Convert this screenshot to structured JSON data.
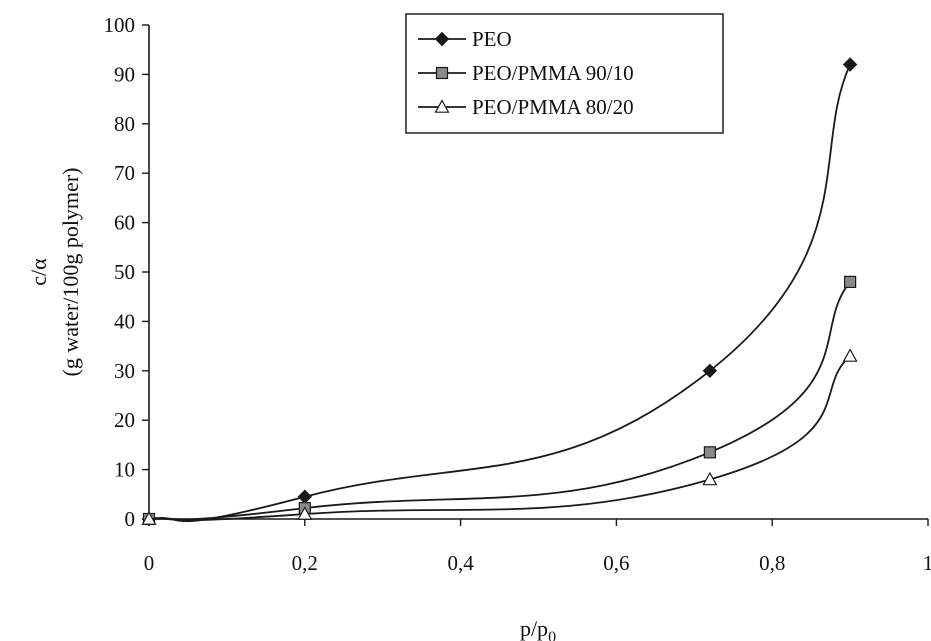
{
  "chart_data": {
    "type": "line",
    "title": "",
    "xlabel": "p/p",
    "xlabel_sub": "0",
    "ylabel_line1": "c/α",
    "ylabel_line2": "(g water/100g polymer)",
    "xlim": [
      0,
      1
    ],
    "ylim": [
      0,
      100
    ],
    "x_ticks": [
      0,
      0.2,
      0.4,
      0.6,
      0.8,
      1
    ],
    "x_tick_labels": [
      "0",
      "0,2",
      "0,4",
      "0,6",
      "0,8",
      "1"
    ],
    "y_ticks": [
      0,
      10,
      20,
      30,
      40,
      50,
      60,
      70,
      80,
      90,
      100
    ],
    "y_tick_labels": [
      "0",
      "10",
      "20",
      "30",
      "40",
      "50",
      "60",
      "70",
      "80",
      "90",
      "100"
    ],
    "grid": false,
    "legend_position": "top-center",
    "series": [
      {
        "name": "PEO",
        "marker": "diamond",
        "x": [
          0,
          0.2,
          0.72,
          0.9
        ],
        "y": [
          0,
          4.5,
          30,
          92
        ]
      },
      {
        "name": "PEO/PMMA 90/10",
        "marker": "square",
        "x": [
          0,
          0.2,
          0.72,
          0.9
        ],
        "y": [
          0,
          2.2,
          13.5,
          48
        ]
      },
      {
        "name": "PEO/PMMA 80/20",
        "marker": "triangle",
        "x": [
          0,
          0.2,
          0.72,
          0.9
        ],
        "y": [
          0,
          1.0,
          8.0,
          33
        ]
      }
    ],
    "colors": {
      "line": "#1a1a1a",
      "marker_fill_diamond": "#1a1a1a",
      "marker_fill_square": "#8a8a8a",
      "marker_fill_triangle": "#ffffff"
    }
  }
}
